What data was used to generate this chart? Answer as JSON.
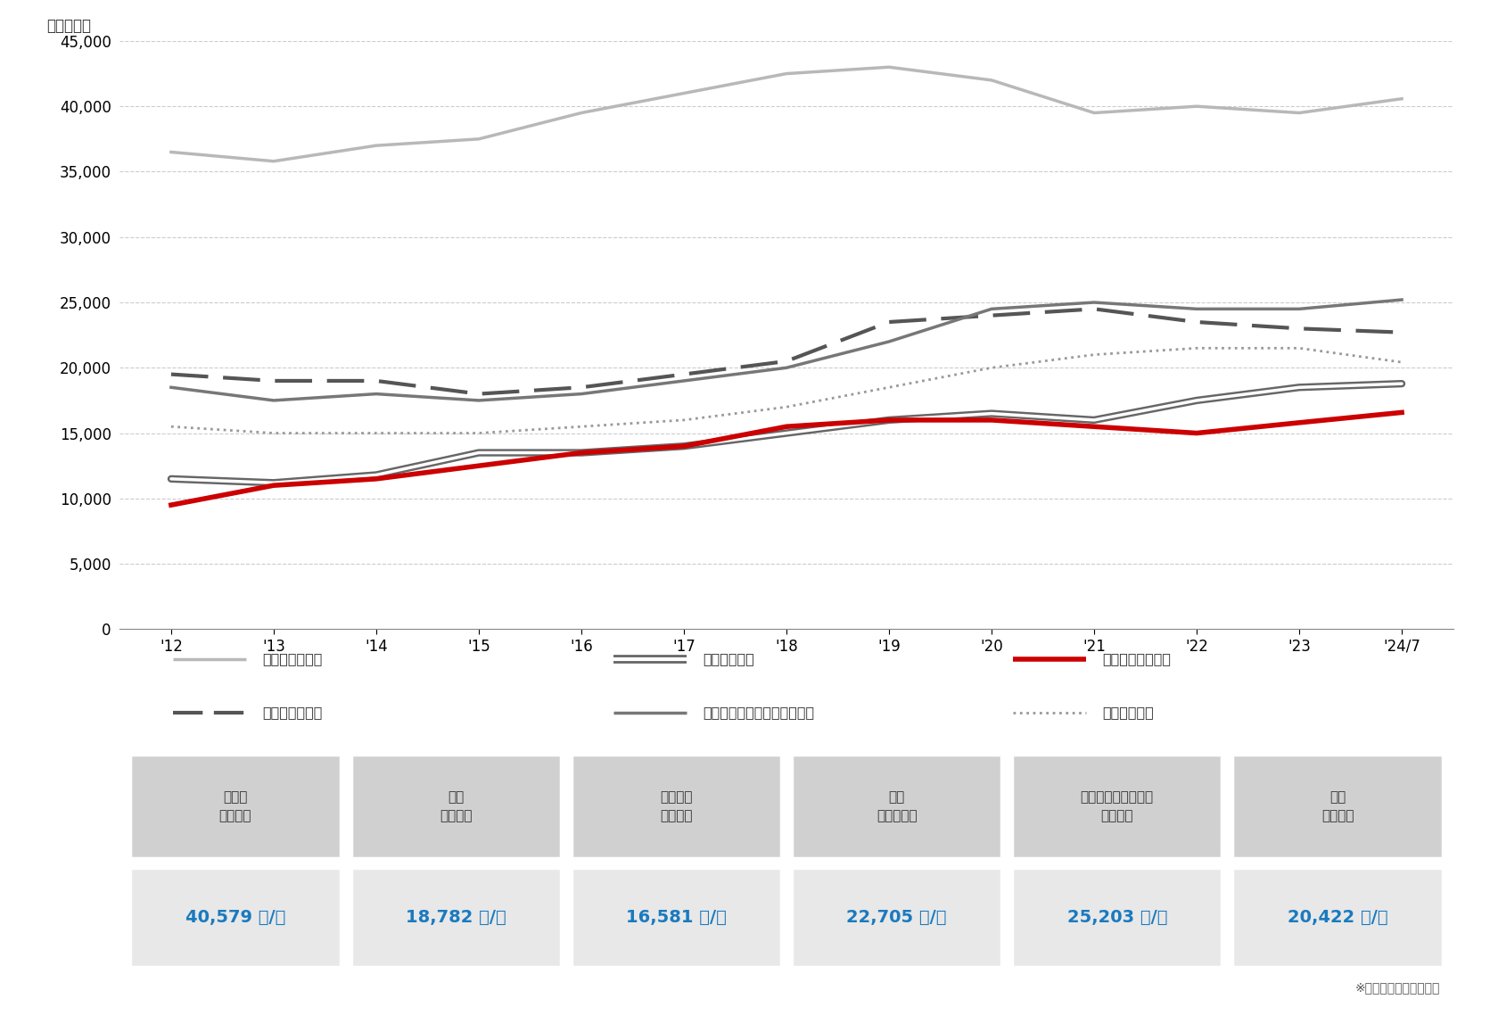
{
  "x_labels": [
    "'12",
    "'13",
    "'14",
    "'15",
    "'16",
    "'17",
    "'18",
    "'19",
    "'20",
    "'21",
    "'22",
    "'23",
    "'24/7"
  ],
  "x_values": [
    0,
    1,
    2,
    3,
    4,
    5,
    6,
    7,
    8,
    9,
    10,
    11,
    12
  ],
  "marunouchi_values": [
    36500,
    35800,
    37000,
    37500,
    39500,
    41000,
    42500,
    43000,
    42000,
    39500,
    40000,
    39500,
    40579
  ],
  "minamiguchi_values": [
    11500,
    11200,
    11800,
    13500,
    13500,
    14000,
    15000,
    16000,
    16500,
    16000,
    17500,
    18500,
    18782
  ],
  "ekimae_values": [
    9500,
    11000,
    11500,
    12500,
    13500,
    14000,
    15500,
    16000,
    16000,
    15500,
    15000,
    15800,
    16581
  ],
  "meiki_values": [
    19500,
    19000,
    19000,
    18000,
    18500,
    19500,
    20500,
    23500,
    24000,
    24500,
    23500,
    23000,
    22705
  ],
  "umeda_values": [
    18500,
    17500,
    18000,
    17500,
    18000,
    19000,
    20000,
    22000,
    24500,
    25000,
    24500,
    24500,
    25203
  ],
  "tenjin_values": [
    15500,
    15000,
    15000,
    15000,
    15500,
    16000,
    17000,
    18500,
    20000,
    21000,
    21500,
    21500,
    20422
  ],
  "marunouchi_color": "#b8b8b8",
  "minamiguchi_color": "#666666",
  "ekimae_color": "#cc0000",
  "meiki_color": "#555555",
  "umeda_color": "#777777",
  "tenjin_color": "#999999",
  "grid_color": "#cccccc",
  "bg_color": "#ffffff",
  "ylim": [
    0,
    45000
  ],
  "yticks": [
    0,
    5000,
    10000,
    15000,
    20000,
    25000,
    30000,
    35000,
    40000,
    45000
  ],
  "ylabel": "（円／嵪）",
  "legend_row1": [
    {
      "label": "丸の内（東京）",
      "type": "solid_light"
    },
    {
      "label": "南口（札幌）",
      "type": "double"
    },
    {
      "label": "駅前本町（仙台）",
      "type": "solid_red"
    }
  ],
  "legend_row2": [
    {
      "label": "名駅（名古屋）",
      "type": "dashed_dark"
    },
    {
      "label": "梅田・堂島・中之島（大阪）",
      "type": "solid_mid"
    },
    {
      "label": "天神（福岡）",
      "type": "dotted"
    }
  ],
  "table_headers": [
    "丸の内\n（東京）",
    "南口\n（札幌）",
    "駅前本町\n（仙台）",
    "名駅\n（名古屋）",
    "梅田・堂島・中之島\n（大阪）",
    "天神\n（福岡）"
  ],
  "table_values": [
    "40,579 円/嵪",
    "18,782 円/嵪",
    "16,581 円/嵪",
    "22,705 円/嵪",
    "25,203 円/嵪",
    "20,422 円/嵪"
  ],
  "table_header_bg": "#d0d0d0",
  "table_value_bg": "#e8e8e8",
  "table_value_color": "#1a7abf",
  "table_header_color": "#333333",
  "footnote": "※　募集賃料：共益費込"
}
